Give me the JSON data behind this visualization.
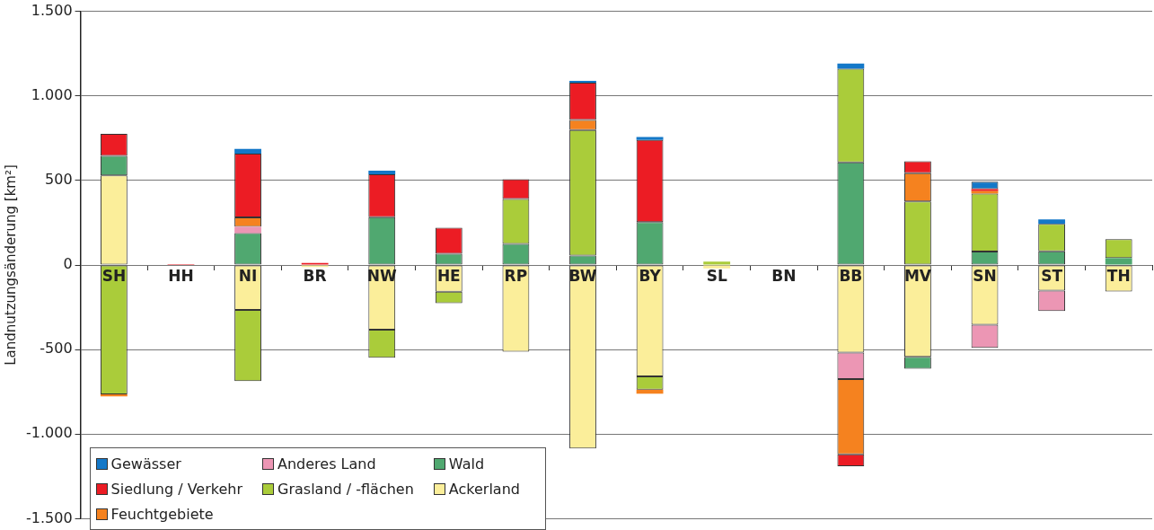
{
  "chart_data": {
    "type": "bar",
    "stacked": true,
    "ylabel": "Landnutzungsänderung [km²]",
    "categories": [
      "SH",
      "HH",
      "NI",
      "BR",
      "NW",
      "HE",
      "RP",
      "BW",
      "BY",
      "SL",
      "BN",
      "BB",
      "MV",
      "SN",
      "ST",
      "TH"
    ],
    "series": [
      {
        "name": "Ackerland",
        "color": "#fbee9a",
        "values": [
          530,
          null,
          -266,
          -12,
          -382,
          -158,
          -512,
          -1085,
          -658,
          -20,
          null,
          -518,
          -543,
          -353,
          -151,
          -157
        ]
      },
      {
        "name": "Wald",
        "color": "#50a870",
        "values": [
          115,
          null,
          188,
          null,
          283,
          67,
          125,
          56,
          254,
          null,
          null,
          607,
          -70,
          80,
          81,
          41
        ]
      },
      {
        "name": "Grasland / -flächen",
        "color": "#aacc3a",
        "values": [
          -765,
          null,
          -420,
          null,
          -166,
          -68,
          266,
          742,
          -79,
          20,
          null,
          553,
          376,
          342,
          162,
          112
        ]
      },
      {
        "name": "Anderes Land",
        "color": "#ec96b4",
        "values": [
          null,
          null,
          38,
          null,
          null,
          null,
          null,
          null,
          null,
          null,
          null,
          -157,
          null,
          -137,
          -121,
          null
        ]
      },
      {
        "name": "Feuchtgebiete",
        "color": "#f5821f",
        "values": [
          -12,
          null,
          55,
          null,
          null,
          null,
          null,
          60,
          -24,
          null,
          null,
          -445,
          167,
          15,
          null,
          null
        ]
      },
      {
        "name": "Siedlung / Verkehr",
        "color": "#ec1c24",
        "values": [
          130,
          5,
          377,
          12,
          253,
          154,
          116,
          220,
          485,
          null,
          null,
          -70,
          70,
          12,
          null,
          null
        ]
      },
      {
        "name": "Gewässer",
        "color": "#1478c8",
        "values": [
          null,
          null,
          28,
          null,
          22,
          null,
          null,
          11,
          18,
          null,
          null,
          31,
          null,
          43,
          27,
          null
        ]
      }
    ],
    "ylim": [
      -1500,
      1500
    ],
    "yticks": [
      {
        "value": -1500,
        "label": "-1.500"
      },
      {
        "value": -1000,
        "label": "-1.000"
      },
      -500,
      0,
      500,
      {
        "value": 1000,
        "label": "1.000"
      },
      {
        "value": 1500,
        "label": "1.500"
      }
    ],
    "grid": "y",
    "legend": "bottom left"
  }
}
